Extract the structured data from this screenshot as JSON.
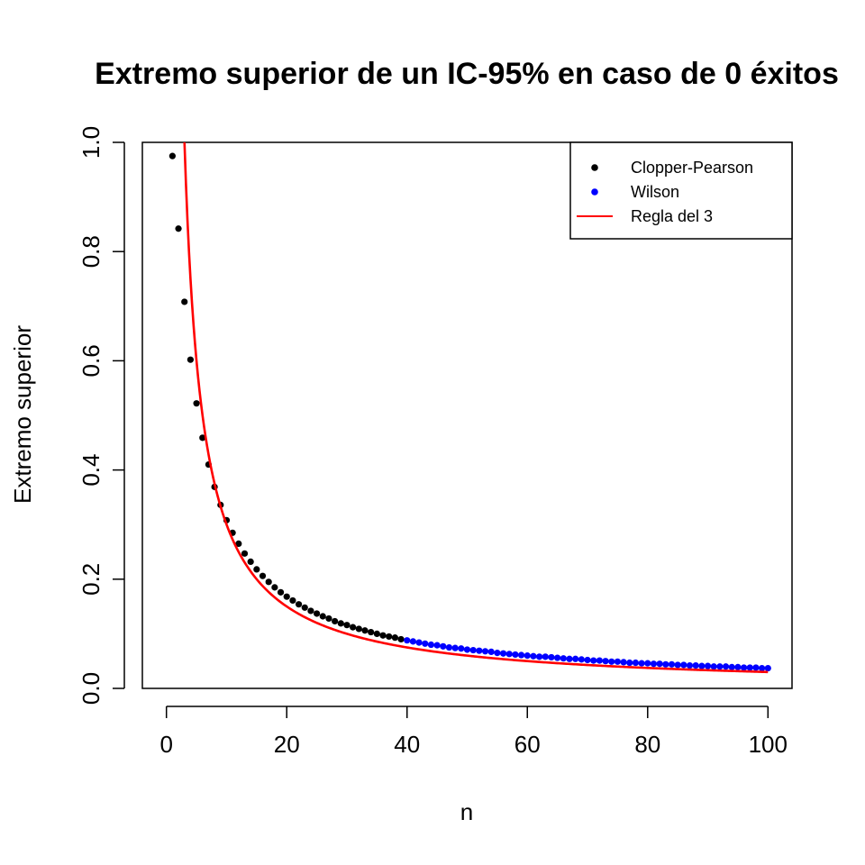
{
  "chart_data": {
    "type": "scatter",
    "title": "Extremo superior de un IC-95% en caso de 0 éxitos",
    "xlabel": "n",
    "ylabel": "Extremo superior",
    "xlim": [
      -4,
      104
    ],
    "ylim": [
      0,
      1.0
    ],
    "x_ticks": [
      0,
      20,
      40,
      60,
      80,
      100
    ],
    "x_tick_labels": [
      "0",
      "20",
      "40",
      "60",
      "80",
      "100"
    ],
    "y_ticks": [
      0.0,
      0.2,
      0.4,
      0.6,
      0.8,
      1.0
    ],
    "y_tick_labels": [
      "0.0",
      "0.2",
      "0.4",
      "0.6",
      "0.8",
      "1.0"
    ],
    "grid": false,
    "legend_position": "top-right",
    "colors": {
      "clopper_pearson": "#000000",
      "wilson": "#0000ff",
      "regla_del_3": "#ff0000"
    },
    "series": [
      {
        "name": "Clopper-Pearson",
        "kind": "points",
        "color": "#000000",
        "x": [
          1,
          2,
          3,
          4,
          5,
          6,
          7,
          8,
          9,
          10,
          11,
          12,
          13,
          14,
          15,
          16,
          17,
          18,
          19,
          20,
          21,
          22,
          23,
          24,
          25,
          26,
          27,
          28,
          29,
          30,
          31,
          32,
          33,
          34,
          35,
          36,
          37,
          38,
          39
        ],
        "y": [
          0.975,
          0.842,
          0.708,
          0.602,
          0.522,
          0.459,
          0.41,
          0.369,
          0.336,
          0.308,
          0.285,
          0.265,
          0.247,
          0.232,
          0.218,
          0.206,
          0.195,
          0.185,
          0.176,
          0.168,
          0.161,
          0.154,
          0.148,
          0.142,
          0.137,
          0.132,
          0.128,
          0.123,
          0.119,
          0.116,
          0.112,
          0.109,
          0.106,
          0.103,
          0.1,
          0.097,
          0.095,
          0.093,
          0.09
        ]
      },
      {
        "name": "Wilson",
        "kind": "points",
        "color": "#0000ff",
        "x": [
          40,
          41,
          42,
          43,
          44,
          45,
          46,
          47,
          48,
          49,
          50,
          51,
          52,
          53,
          54,
          55,
          56,
          57,
          58,
          59,
          60,
          61,
          62,
          63,
          64,
          65,
          66,
          67,
          68,
          69,
          70,
          71,
          72,
          73,
          74,
          75,
          76,
          77,
          78,
          79,
          80,
          81,
          82,
          83,
          84,
          85,
          86,
          87,
          88,
          89,
          90,
          91,
          92,
          93,
          94,
          95,
          96,
          97,
          98,
          99,
          100
        ],
        "y": [
          0.088,
          0.086,
          0.084,
          0.082,
          0.08,
          0.079,
          0.077,
          0.075,
          0.074,
          0.073,
          0.071,
          0.07,
          0.069,
          0.068,
          0.067,
          0.065,
          0.064,
          0.063,
          0.062,
          0.061,
          0.06,
          0.059,
          0.058,
          0.058,
          0.057,
          0.056,
          0.055,
          0.054,
          0.054,
          0.053,
          0.052,
          0.051,
          0.051,
          0.05,
          0.049,
          0.049,
          0.048,
          0.047,
          0.047,
          0.046,
          0.046,
          0.045,
          0.045,
          0.044,
          0.044,
          0.043,
          0.043,
          0.042,
          0.042,
          0.041,
          0.041,
          0.04,
          0.04,
          0.04,
          0.039,
          0.039,
          0.038,
          0.038,
          0.038,
          0.037,
          0.037
        ]
      },
      {
        "name": "Regla del 3",
        "kind": "line",
        "color": "#ff0000",
        "formula": "3/n",
        "x_start": 1,
        "x_end": 100
      }
    ]
  }
}
